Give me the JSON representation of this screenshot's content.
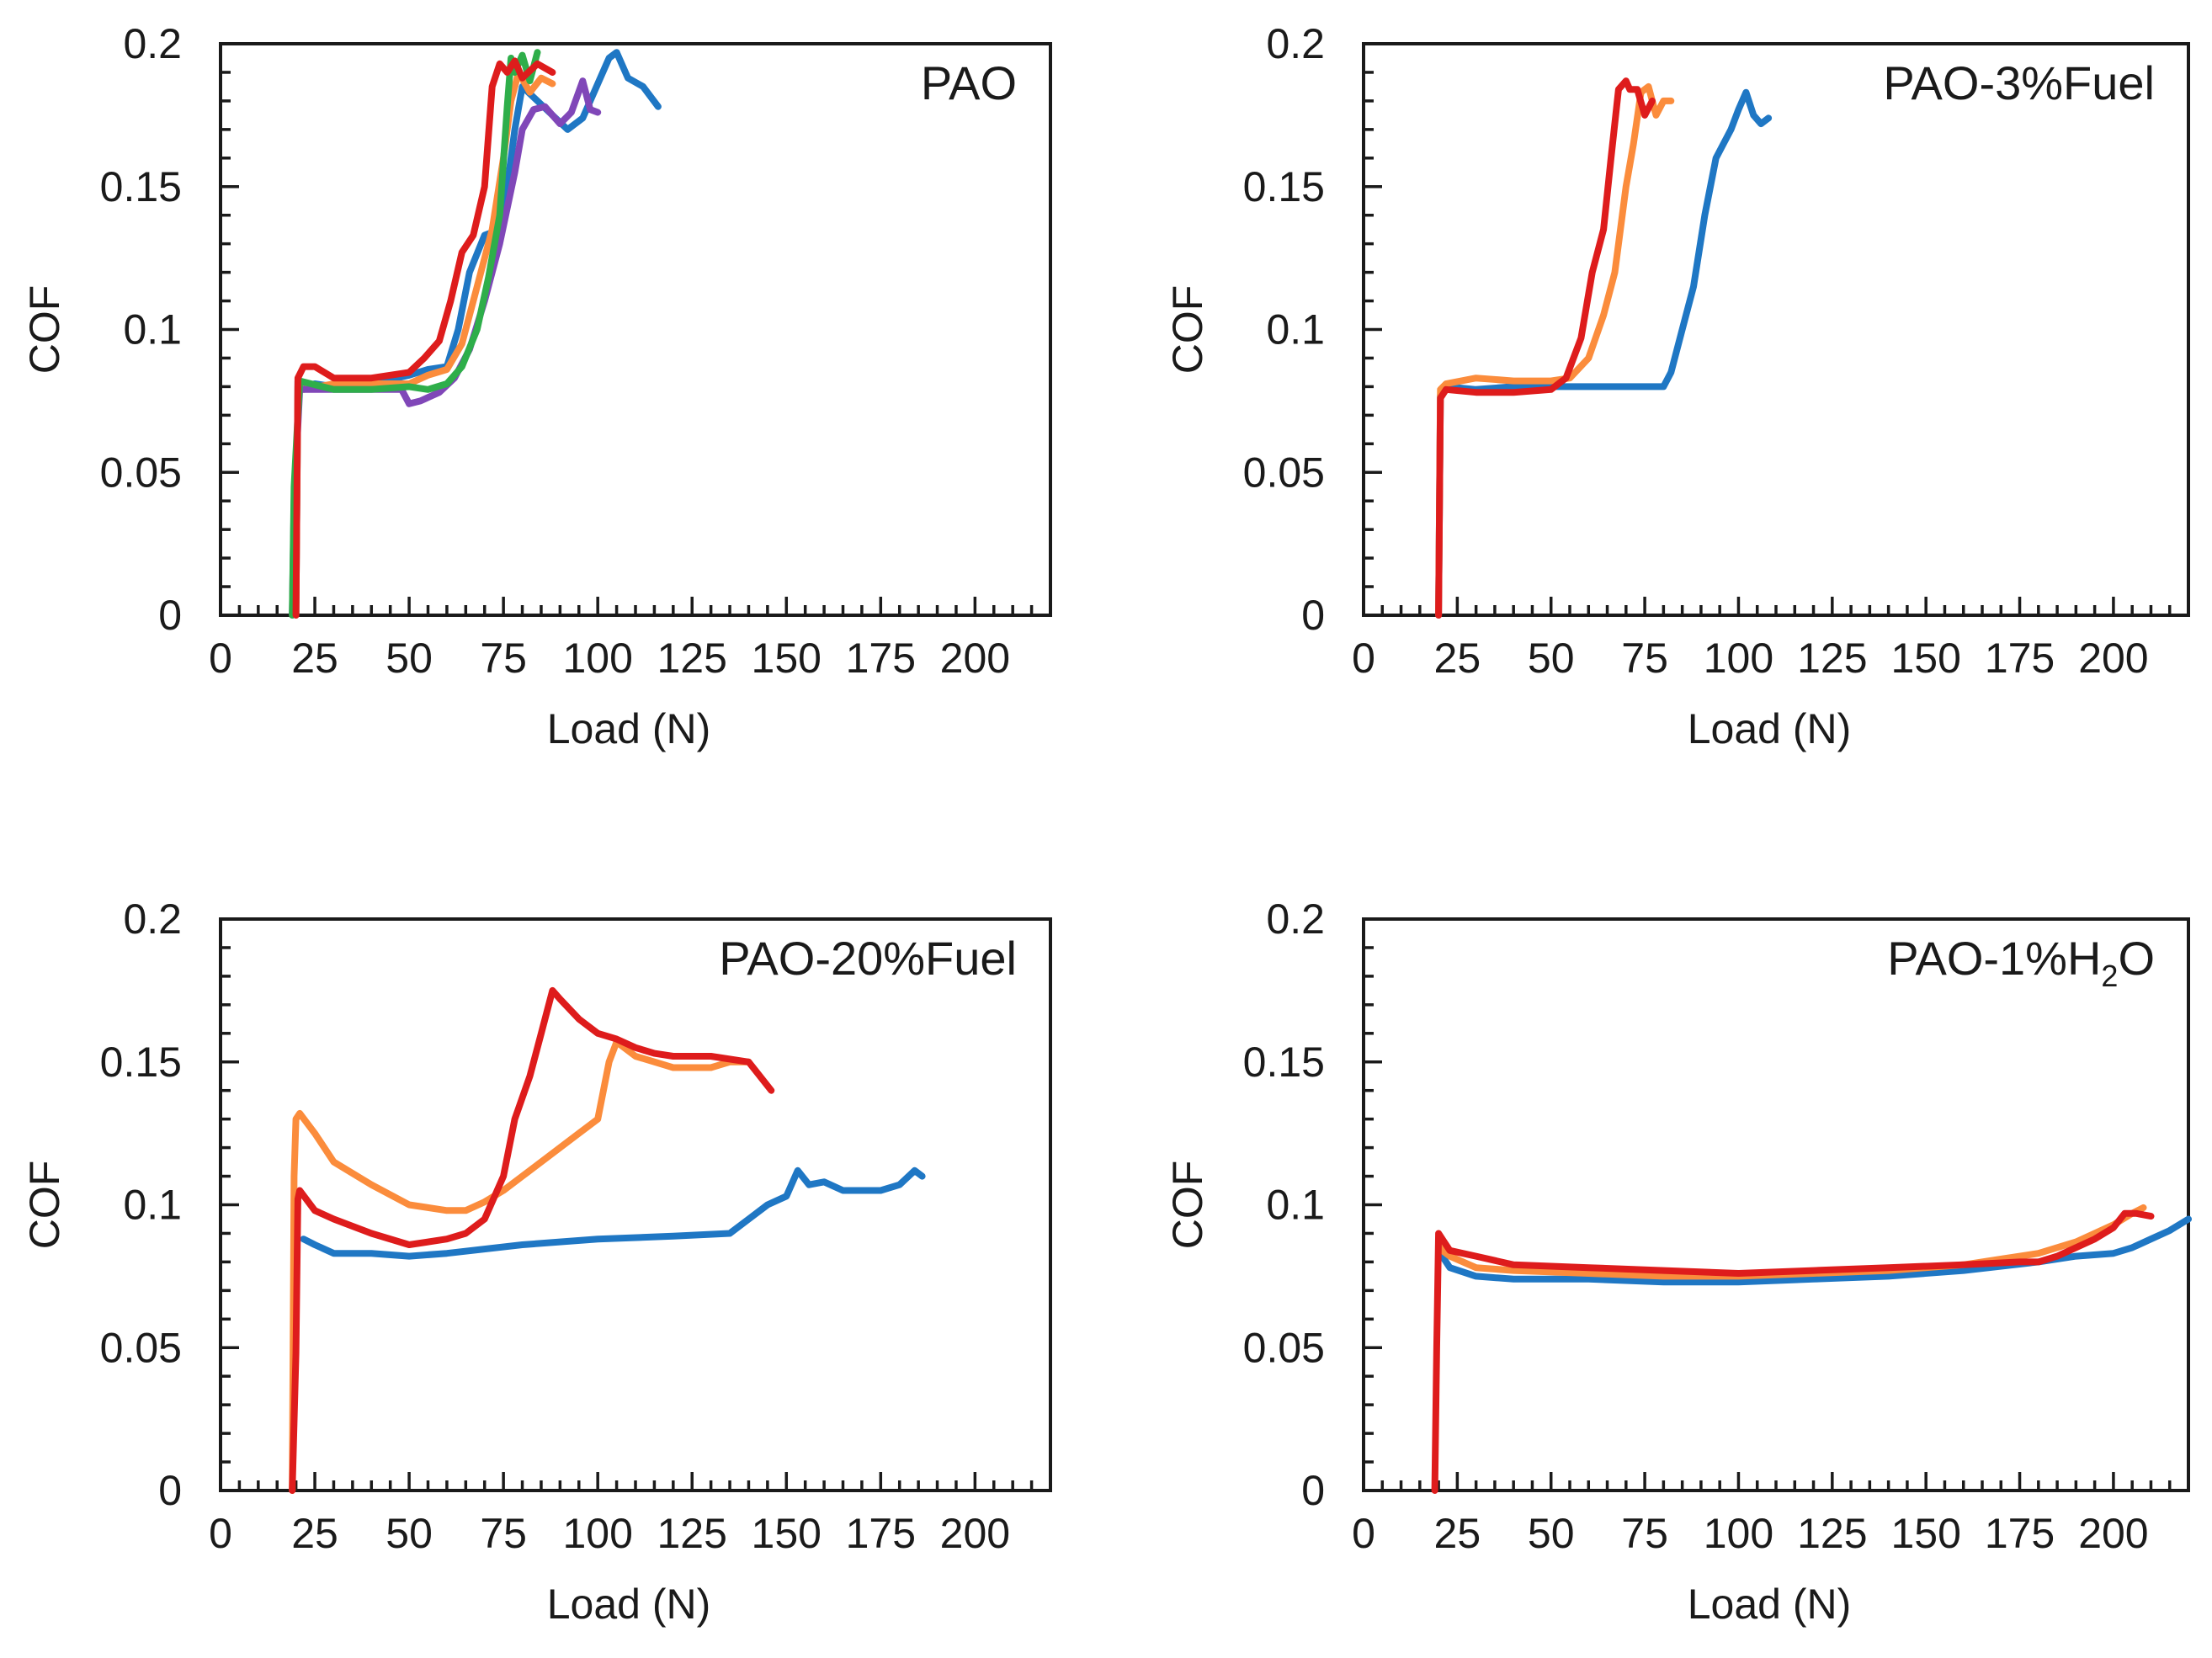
{
  "chart_data": [
    {
      "type": "line",
      "panel_label": "PAO",
      "panel_label_main": "PAO",
      "xlabel": "Load (N)",
      "ylabel": "COF",
      "xlim": [
        0,
        220
      ],
      "ylim": [
        0,
        0.2
      ],
      "xticks": [
        0,
        25,
        50,
        75,
        100,
        125,
        150,
        175,
        200
      ],
      "yticks": [
        0,
        0.05,
        0.1,
        0.15,
        0.2
      ],
      "xtick_labels": [
        "0",
        "25",
        "50",
        "75",
        "100",
        "125",
        "150",
        "175",
        "200"
      ],
      "ytick_labels": [
        "0",
        "0.05",
        "0.1",
        "0.15",
        "0.2"
      ],
      "series": [
        {
          "color": "#1f77c4",
          "x": [
            20,
            20.5,
            22,
            25,
            30,
            40,
            50,
            55,
            60,
            63,
            66,
            70,
            74,
            76,
            78,
            80,
            84,
            88,
            92,
            96,
            100,
            103,
            105,
            108,
            112,
            116
          ],
          "y": [
            0,
            0.082,
            0.08,
            0.081,
            0.08,
            0.081,
            0.084,
            0.086,
            0.087,
            0.1,
            0.12,
            0.133,
            0.135,
            0.15,
            0.17,
            0.185,
            0.18,
            0.175,
            0.17,
            0.174,
            0.186,
            0.195,
            0.197,
            0.188,
            0.185,
            0.178
          ]
        },
        {
          "color": "#fb8c3c",
          "x": [
            20,
            20.5,
            22,
            30,
            40,
            50,
            55,
            60,
            64,
            68,
            72,
            75,
            77,
            79,
            82,
            85,
            88
          ],
          "y": [
            0,
            0.08,
            0.079,
            0.081,
            0.081,
            0.081,
            0.084,
            0.086,
            0.095,
            0.115,
            0.135,
            0.16,
            0.18,
            0.19,
            0.183,
            0.188,
            0.186
          ]
        },
        {
          "color": "#8047b8",
          "x": [
            19,
            19.5,
            21,
            30,
            40,
            48,
            50,
            53,
            58,
            62,
            66,
            70,
            74,
            78,
            80,
            83,
            86,
            90,
            93,
            96,
            98,
            100
          ],
          "y": [
            0,
            0.04,
            0.079,
            0.079,
            0.079,
            0.079,
            0.074,
            0.075,
            0.078,
            0.083,
            0.093,
            0.11,
            0.13,
            0.155,
            0.17,
            0.177,
            0.178,
            0.172,
            0.176,
            0.187,
            0.177,
            0.176
          ]
        },
        {
          "color": "#2eae4a",
          "x": [
            19,
            19.5,
            21,
            30,
            40,
            50,
            55,
            60,
            64,
            68,
            71,
            74,
            76,
            77,
            78,
            80,
            82,
            84
          ],
          "y": [
            0,
            0.045,
            0.082,
            0.079,
            0.079,
            0.08,
            0.079,
            0.081,
            0.087,
            0.1,
            0.118,
            0.14,
            0.178,
            0.195,
            0.19,
            0.196,
            0.187,
            0.197
          ]
        },
        {
          "color": "#de1c1c",
          "x": [
            20,
            20.5,
            22,
            25,
            30,
            40,
            50,
            54,
            58,
            61,
            64,
            67,
            70,
            72,
            74,
            76,
            78,
            80,
            84,
            88
          ],
          "y": [
            0,
            0.083,
            0.087,
            0.087,
            0.083,
            0.083,
            0.085,
            0.09,
            0.096,
            0.11,
            0.127,
            0.133,
            0.15,
            0.185,
            0.193,
            0.19,
            0.194,
            0.188,
            0.193,
            0.19
          ]
        }
      ]
    },
    {
      "type": "line",
      "panel_label": "PAO-3%Fuel",
      "panel_label_main": "PAO-3%Fuel",
      "xlabel": "Load (N)",
      "ylabel": "COF",
      "xlim": [
        0,
        220
      ],
      "ylim": [
        0,
        0.2
      ],
      "xticks": [
        0,
        25,
        50,
        75,
        100,
        125,
        150,
        175,
        200
      ],
      "yticks": [
        0,
        0.05,
        0.1,
        0.15,
        0.2
      ],
      "xtick_labels": [
        "0",
        "25",
        "50",
        "75",
        "100",
        "125",
        "150",
        "175",
        "200"
      ],
      "ytick_labels": [
        "0",
        "0.05",
        "0.1",
        "0.15",
        "0.2"
      ],
      "series": [
        {
          "color": "#1f77c4",
          "x": [
            20,
            20.5,
            22,
            30,
            40,
            50,
            60,
            70,
            80,
            82,
            85,
            88,
            91,
            94,
            96,
            98,
            100,
            102,
            104,
            106,
            108
          ],
          "y": [
            0,
            0.077,
            0.08,
            0.079,
            0.08,
            0.08,
            0.08,
            0.08,
            0.08,
            0.085,
            0.1,
            0.115,
            0.14,
            0.16,
            0.165,
            0.17,
            0.177,
            0.183,
            0.175,
            0.172,
            0.174
          ]
        },
        {
          "color": "#fb8c3c",
          "x": [
            20,
            20.5,
            22,
            30,
            40,
            50,
            55,
            60,
            64,
            67,
            70,
            72,
            74,
            76,
            78,
            80,
            82
          ],
          "y": [
            0,
            0.079,
            0.081,
            0.083,
            0.082,
            0.082,
            0.083,
            0.09,
            0.105,
            0.12,
            0.15,
            0.165,
            0.183,
            0.185,
            0.175,
            0.18,
            0.18
          ]
        },
        {
          "color": "#de1c1c",
          "x": [
            20,
            20.5,
            22,
            30,
            40,
            50,
            54,
            58,
            61,
            64,
            66,
            68,
            70,
            71,
            73,
            75,
            77
          ],
          "y": [
            0,
            0.076,
            0.079,
            0.078,
            0.078,
            0.079,
            0.083,
            0.097,
            0.12,
            0.135,
            0.16,
            0.184,
            0.187,
            0.184,
            0.184,
            0.175,
            0.18
          ]
        }
      ]
    },
    {
      "type": "line",
      "panel_label": "PAO-20%Fuel",
      "panel_label_main": "PAO-20%Fuel",
      "xlabel": "Load (N)",
      "ylabel": "COF",
      "xlim": [
        0,
        220
      ],
      "ylim": [
        0,
        0.2
      ],
      "xticks": [
        0,
        25,
        50,
        75,
        100,
        125,
        150,
        175,
        200
      ],
      "yticks": [
        0,
        0.05,
        0.1,
        0.15,
        0.2
      ],
      "xtick_labels": [
        "0",
        "25",
        "50",
        "75",
        "100",
        "125",
        "150",
        "175",
        "200"
      ],
      "ytick_labels": [
        "0",
        "0.05",
        "0.1",
        "0.15",
        "0.2"
      ],
      "series": [
        {
          "color": "#1f77c4",
          "x": [
            22,
            25,
            30,
            40,
            50,
            60,
            80,
            100,
            120,
            135,
            145,
            150,
            153,
            156,
            160,
            165,
            170,
            175,
            180,
            184,
            186
          ],
          "y": [
            0.088,
            0.086,
            0.083,
            0.083,
            0.082,
            0.083,
            0.086,
            0.088,
            0.089,
            0.09,
            0.1,
            0.103,
            0.112,
            0.107,
            0.108,
            0.105,
            0.105,
            0.105,
            0.107,
            0.112,
            0.11
          ]
        },
        {
          "color": "#fb8c3c",
          "x": [
            19,
            19.5,
            20,
            21,
            25,
            30,
            40,
            50,
            60,
            65,
            70,
            75,
            80,
            85,
            90,
            95,
            100,
            103,
            105,
            107,
            110,
            120,
            130,
            135,
            140
          ],
          "y": [
            0,
            0.11,
            0.13,
            0.132,
            0.125,
            0.115,
            0.107,
            0.1,
            0.098,
            0.098,
            0.101,
            0.105,
            0.11,
            0.115,
            0.12,
            0.125,
            0.13,
            0.15,
            0.157,
            0.155,
            0.152,
            0.148,
            0.148,
            0.15,
            0.15
          ]
        },
        {
          "color": "#de1c1c",
          "x": [
            19,
            20,
            20.5,
            21,
            25,
            30,
            40,
            50,
            60,
            65,
            70,
            75,
            78,
            82,
            85,
            88,
            90,
            95,
            100,
            105,
            110,
            115,
            120,
            130,
            140,
            146
          ],
          "y": [
            0,
            0.048,
            0.102,
            0.105,
            0.098,
            0.095,
            0.09,
            0.086,
            0.088,
            0.09,
            0.095,
            0.11,
            0.13,
            0.145,
            0.16,
            0.175,
            0.172,
            0.165,
            0.16,
            0.158,
            0.155,
            0.153,
            0.152,
            0.152,
            0.15,
            0.14
          ]
        }
      ]
    },
    {
      "type": "line",
      "panel_label": "PAO-1%H2O",
      "panel_label_main": "PAO-1%H",
      "panel_label_sub": "2",
      "panel_label_end": "O",
      "xlabel": "Load (N)",
      "ylabel": "COF",
      "xlim": [
        0,
        220
      ],
      "ylim": [
        0,
        0.2
      ],
      "xticks": [
        0,
        25,
        50,
        75,
        100,
        125,
        150,
        175,
        200
      ],
      "yticks": [
        0,
        0.05,
        0.1,
        0.15,
        0.2
      ],
      "xtick_labels": [
        "0",
        "25",
        "50",
        "75",
        "100",
        "125",
        "150",
        "175",
        "200"
      ],
      "ytick_labels": [
        "0",
        "0.05",
        "0.1",
        "0.15",
        "0.2"
      ],
      "series": [
        {
          "color": "#1f77c4",
          "x": [
            20,
            21,
            23,
            30,
            40,
            60,
            80,
            100,
            120,
            140,
            160,
            180,
            190,
            200,
            205,
            210,
            215,
            220
          ],
          "y": [
            0.085,
            0.082,
            0.078,
            0.075,
            0.074,
            0.074,
            0.073,
            0.073,
            0.074,
            0.075,
            0.077,
            0.08,
            0.082,
            0.083,
            0.085,
            0.088,
            0.091,
            0.095
          ]
        },
        {
          "color": "#fb8c3c",
          "x": [
            20,
            21,
            23,
            30,
            40,
            60,
            80,
            100,
            120,
            140,
            160,
            170,
            180,
            190,
            200,
            205,
            208
          ],
          "y": [
            0.087,
            0.084,
            0.082,
            0.078,
            0.077,
            0.076,
            0.075,
            0.075,
            0.076,
            0.077,
            0.079,
            0.081,
            0.083,
            0.087,
            0.093,
            0.097,
            0.099
          ]
        },
        {
          "color": "#de1c1c",
          "x": [
            19,
            19.5,
            20,
            21,
            23,
            30,
            40,
            60,
            80,
            100,
            120,
            140,
            160,
            175,
            180,
            185,
            190,
            195,
            200,
            203,
            206,
            210
          ],
          "y": [
            0,
            0.05,
            0.09,
            0.088,
            0.084,
            0.082,
            0.079,
            0.078,
            0.077,
            0.076,
            0.077,
            0.078,
            0.079,
            0.08,
            0.08,
            0.082,
            0.085,
            0.088,
            0.092,
            0.097,
            0.097,
            0.096
          ]
        }
      ]
    }
  ]
}
